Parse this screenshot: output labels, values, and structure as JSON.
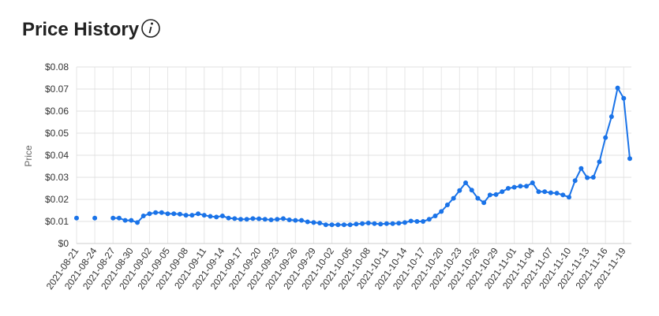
{
  "title": "Price History",
  "chart_data": {
    "type": "line",
    "y_label": "Price",
    "categories": [
      "2021-08-21",
      null,
      null,
      "2021-08-24",
      null,
      null,
      "2021-08-27",
      null,
      null,
      "2021-08-30",
      null,
      null,
      "2021-09-02",
      null,
      null,
      "2021-09-05",
      null,
      null,
      "2021-09-08",
      null,
      null,
      "2021-09-11",
      null,
      null,
      "2021-09-14",
      null,
      null,
      "2021-09-17",
      null,
      null,
      "2021-09-20",
      null,
      null,
      "2021-09-23",
      null,
      null,
      "2021-09-26",
      null,
      null,
      "2021-09-29",
      null,
      null,
      "2021-10-02",
      null,
      null,
      "2021-10-05",
      null,
      null,
      "2021-10-08",
      null,
      null,
      "2021-10-11",
      null,
      null,
      "2021-10-14",
      null,
      null,
      "2021-10-17",
      null,
      null,
      "2021-10-20",
      null,
      null,
      "2021-10-23",
      null,
      null,
      "2021-10-26",
      null,
      null,
      "2021-10-29",
      null,
      null,
      "2021-11-01",
      null,
      null,
      "2021-11-04",
      null,
      null,
      "2021-11-07",
      null,
      null,
      "2021-11-10",
      null,
      null,
      "2021-11-13",
      null,
      null,
      "2021-11-16",
      null,
      null,
      "2021-11-19",
      null
    ],
    "series": [
      {
        "name": "Price",
        "color": "#1a73e8",
        "values": [
          0.0115,
          null,
          null,
          0.0115,
          null,
          null,
          0.0115,
          0.0115,
          0.0105,
          0.0105,
          0.0095,
          0.0125,
          0.0135,
          0.014,
          0.014,
          0.0135,
          0.0135,
          0.0133,
          0.0128,
          0.0128,
          0.0135,
          0.0128,
          0.0123,
          0.012,
          0.0125,
          0.0115,
          0.0113,
          0.011,
          0.011,
          0.0113,
          0.0112,
          0.011,
          0.0107,
          0.011,
          0.0113,
          0.0107,
          0.0105,
          0.0105,
          0.0098,
          0.0095,
          0.0093,
          0.0085,
          0.0085,
          0.0085,
          0.0085,
          0.0085,
          0.0088,
          0.009,
          0.0093,
          0.009,
          0.0088,
          0.009,
          0.009,
          0.0092,
          0.0095,
          0.0102,
          0.01,
          0.01,
          0.011,
          0.0125,
          0.0145,
          0.0175,
          0.0205,
          0.024,
          0.0275,
          0.0242,
          0.0205,
          0.0185,
          0.022,
          0.0222,
          0.0235,
          0.025,
          0.0255,
          0.026,
          0.026,
          0.0275,
          0.0235,
          0.0235,
          0.023,
          0.0228,
          0.022,
          0.021,
          0.0285,
          0.034,
          0.0298,
          0.03,
          0.037,
          0.048,
          0.0575,
          0.0705,
          0.0658,
          0.0385
        ]
      }
    ],
    "ylim": [
      0,
      0.08
    ],
    "yticks": [
      {
        "value": 0,
        "label": "$0"
      },
      {
        "value": 0.01,
        "label": "$0.01"
      },
      {
        "value": 0.02,
        "label": "$0.02"
      },
      {
        "value": 0.03,
        "label": "$0.03"
      },
      {
        "value": 0.04,
        "label": "$0.04"
      },
      {
        "value": 0.05,
        "label": "$0.05"
      },
      {
        "value": 0.06,
        "label": "$0.06"
      },
      {
        "value": 0.07,
        "label": "$0.07"
      },
      {
        "value": 0.08,
        "label": "$0.08"
      }
    ],
    "grid": true
  }
}
